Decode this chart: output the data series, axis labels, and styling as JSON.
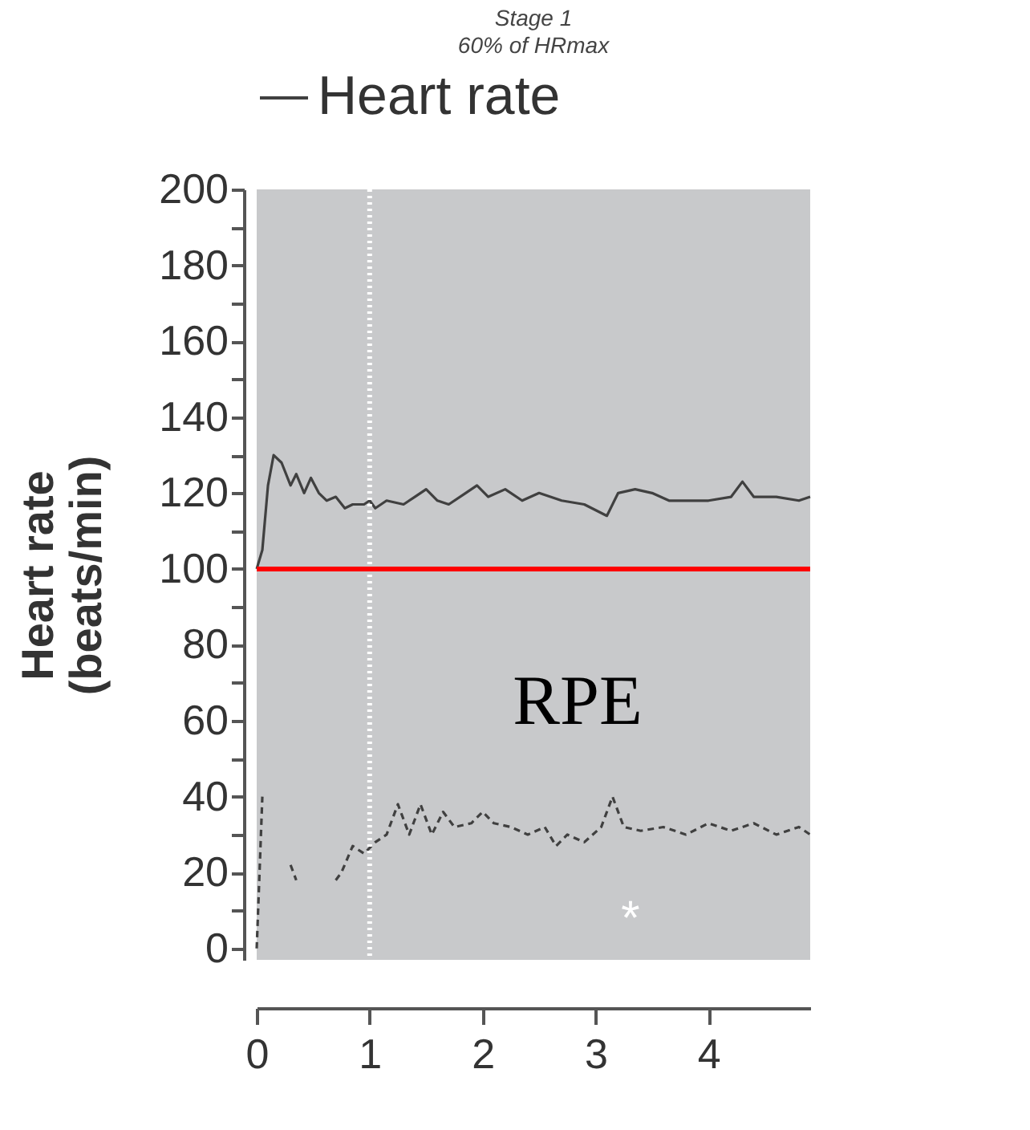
{
  "chart_data": {
    "type": "line",
    "title": "Stage 1",
    "subtitle": "60% of HRmax",
    "ylabel": "Heart rate\n(beats/min)",
    "xlim": [
      0,
      4.9
    ],
    "xticks": [
      0,
      1,
      2,
      3,
      4
    ],
    "ylim": [
      -3,
      200
    ],
    "yticks": [
      0,
      {
        "value": 10,
        "label": null
      },
      20,
      {
        "value": 30,
        "label": null
      },
      40,
      {
        "value": 50,
        "label": null
      },
      60,
      {
        "value": 70,
        "label": null
      },
      80,
      {
        "value": 90,
        "label": null
      },
      100,
      {
        "value": 110,
        "label": null
      },
      120,
      {
        "value": 130,
        "label": null
      },
      140,
      {
        "value": 150,
        "label": null
      },
      160,
      {
        "value": 170,
        "label": null
      },
      180,
      {
        "value": 190,
        "label": null
      },
      200
    ],
    "grid": false,
    "legend": "top",
    "marker": "none",
    "series": [
      {
        "name": "Heart rate",
        "color": "#404040",
        "line_style": "solid",
        "x": [
          0,
          0.05,
          0.1,
          0.15,
          0.22,
          0.3,
          0.35,
          0.42,
          0.48,
          0.55,
          0.62,
          0.7,
          0.78,
          0.85,
          0.95,
          1.0,
          1.05,
          1.15,
          1.3,
          1.4,
          1.5,
          1.6,
          1.7,
          1.85,
          1.95,
          2.05,
          2.2,
          2.35,
          2.5,
          2.7,
          2.9,
          3.1,
          3.2,
          3.35,
          3.5,
          3.65,
          3.8,
          4.0,
          4.2,
          4.3,
          4.4,
          4.6,
          4.8,
          4.9
        ],
        "values": [
          100,
          105,
          122,
          130,
          128,
          122,
          125,
          120,
          124,
          120,
          118,
          119,
          116,
          117,
          117,
          118,
          116,
          118,
          117,
          119,
          121,
          118,
          117,
          120,
          122,
          119,
          121,
          118,
          120,
          118,
          117,
          114,
          120,
          121,
          120,
          118,
          118,
          118,
          119,
          123,
          119,
          119,
          118,
          119
        ]
      },
      {
        "color": "#404040",
        "line_style": "dashed",
        "x": [
          0,
          0.05,
          0.1,
          0.3,
          0.35,
          0.45,
          0.7,
          0.75,
          0.85,
          0.95,
          1.05,
          1.15,
          1.25,
          1.35,
          1.45,
          1.55,
          1.65,
          1.75,
          1.9,
          2.0,
          2.1,
          2.25,
          2.4,
          2.55,
          2.65,
          2.75,
          2.9,
          3.05,
          3.15,
          3.25,
          3.4,
          3.6,
          3.8,
          4.0,
          4.2,
          4.4,
          4.6,
          4.8,
          4.9
        ],
        "values": [
          0,
          40,
          null,
          22,
          18,
          null,
          18,
          20,
          27,
          25,
          28,
          30,
          38,
          30,
          38,
          30,
          36,
          32,
          33,
          36,
          33,
          32,
          30,
          32,
          27,
          30,
          28,
          32,
          40,
          32,
          31,
          32,
          30,
          33,
          31,
          33,
          30,
          32,
          30
        ]
      }
    ],
    "ref_lines": [
      {
        "axis": "x",
        "value": 1,
        "color": "#ffffff",
        "line_style": "dotted"
      },
      {
        "axis": "y",
        "value": 100,
        "color": "#ff0000",
        "line_style": "solid"
      }
    ],
    "annotations": [
      "RPE",
      "*"
    ]
  }
}
